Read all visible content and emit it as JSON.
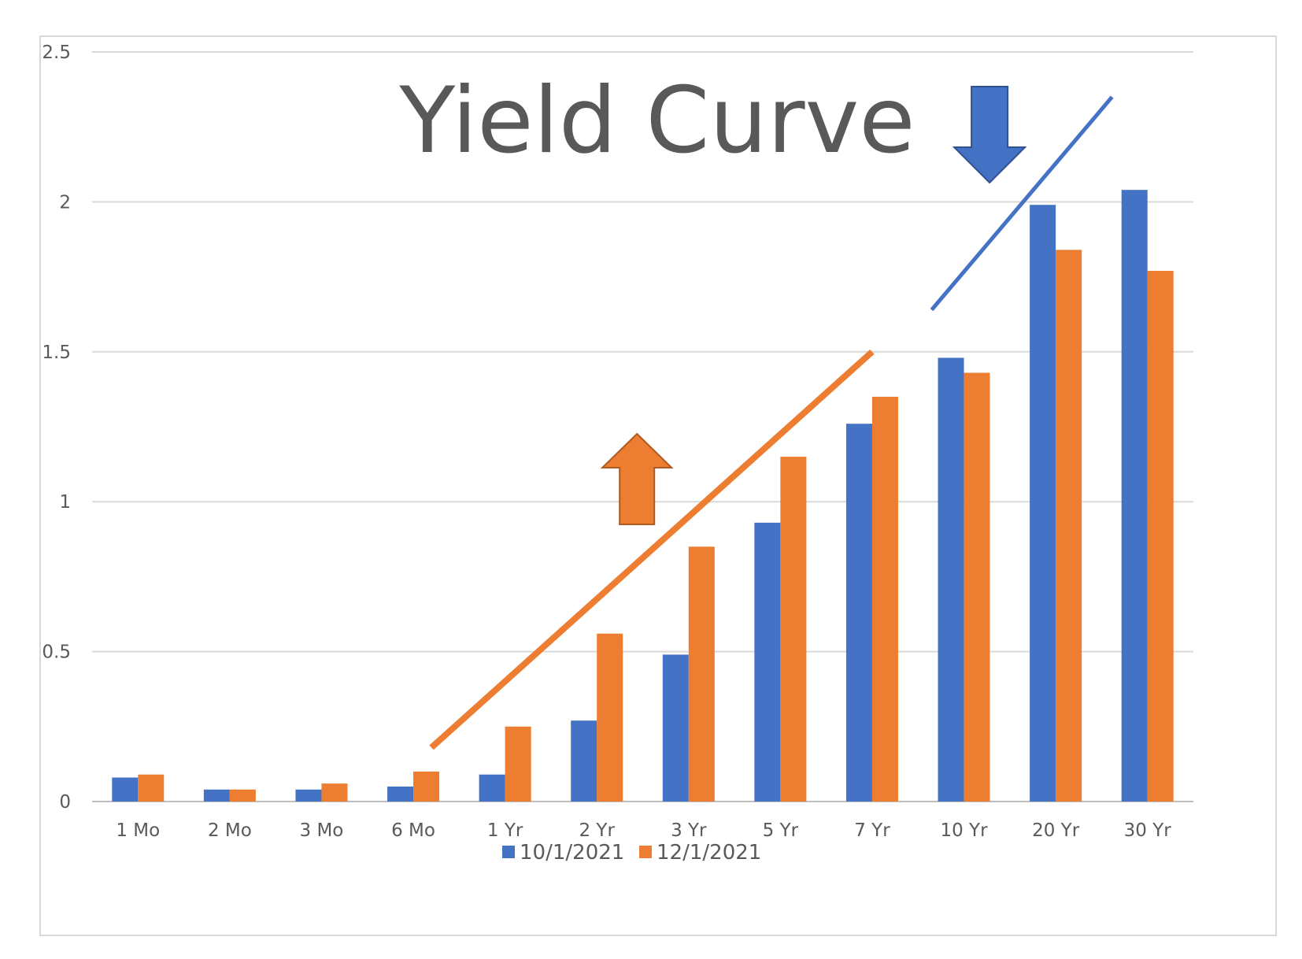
{
  "chart_data": {
    "type": "bar",
    "title": "Yield Curve",
    "xlabel": "",
    "ylabel": "",
    "categories": [
      "1 Mo",
      "2 Mo",
      "3 Mo",
      "6 Mo",
      "1 Yr",
      "2 Yr",
      "3 Yr",
      "5 Yr",
      "7 Yr",
      "10 Yr",
      "20 Yr",
      "30 Yr"
    ],
    "series": [
      {
        "name": "10/1/2021",
        "color": "#4472c4",
        "values": [
          0.08,
          0.04,
          0.04,
          0.05,
          0.09,
          0.27,
          0.49,
          0.93,
          1.26,
          1.48,
          1.99,
          2.04
        ]
      },
      {
        "name": "12/1/2021",
        "color": "#ed7d31",
        "values": [
          0.09,
          0.04,
          0.06,
          0.1,
          0.25,
          0.56,
          0.85,
          1.15,
          1.35,
          1.43,
          1.84,
          1.77
        ]
      }
    ],
    "ylim": [
      0,
      2.5
    ],
    "yticks": [
      "0",
      "0.5",
      "1",
      "1.5",
      "2",
      "2.5"
    ],
    "grid": true,
    "legend_position": "bottom",
    "annotations": [
      {
        "type": "trend-line",
        "color": "#ed7d31",
        "from": {
          "category": "6 Mo",
          "y": 0.18
        },
        "to": {
          "category": "7 Yr",
          "y": 1.5
        }
      },
      {
        "type": "trend-line",
        "color": "#4472c4",
        "from": {
          "category": "10 Yr",
          "y": 1.64
        },
        "to": {
          "category": "30 Yr",
          "y": 2.35
        }
      },
      {
        "type": "arrow",
        "direction": "up",
        "color": "#ed7d31",
        "anchor": {
          "category": "2 Yr",
          "y": 1.1
        }
      },
      {
        "type": "arrow",
        "direction": "down",
        "color": "#4472c4",
        "anchor": {
          "category": "20 Yr",
          "y": 2.2
        }
      }
    ]
  }
}
